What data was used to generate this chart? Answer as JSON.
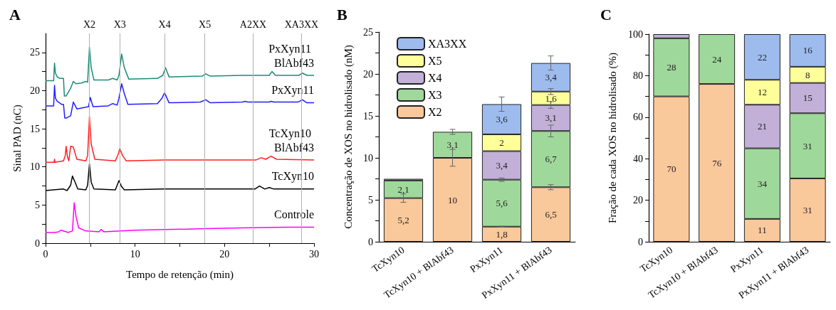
{
  "chart_data": [
    {
      "type": "line",
      "title": "A",
      "xlabel": "Tempo de retenção (min)",
      "ylabel": "Sinal PAD (nC)",
      "xlim": [
        0,
        30
      ],
      "ylim": [
        0,
        27.5
      ],
      "xticks": [
        0,
        {
          "value": 5,
          "label": null
        },
        10,
        {
          "value": 15,
          "label": null
        },
        20,
        {
          "value": 25,
          "label": null
        },
        30
      ],
      "yticks": [
        0,
        {
          "value": 2.5,
          "label": null
        },
        5,
        {
          "value": 7.5,
          "label": null
        },
        10,
        {
          "value": 12.5,
          "label": null
        },
        15,
        {
          "value": 17.5,
          "label": null
        },
        20,
        {
          "value": 22.5,
          "label": null
        },
        25
      ],
      "marker": "none",
      "series": [
        {
          "name": "PxXyn11 BlAbf43",
          "color": "#1a8a7a",
          "x": [
            0,
            0.9,
            1.0,
            1.1,
            1.3,
            1.6,
            2.0,
            2.1,
            2.3,
            2.8,
            3.1,
            3.4,
            4.0,
            4.5,
            4.7,
            4.9,
            5.1,
            5.4,
            7.0,
            7.5,
            8.0,
            8.2,
            8.5,
            8.8,
            9.3,
            12.5,
            13.1,
            13.4,
            13.8,
            17.5,
            17.9,
            18.4,
            22,
            25.0,
            25.3,
            25.7,
            28.3,
            28.7,
            29.2,
            30
          ],
          "values": [
            21.3,
            21.3,
            23.6,
            22.3,
            21.8,
            21.6,
            21.6,
            19.3,
            19.3,
            20.3,
            21.2,
            20.9,
            21.0,
            21.2,
            21.1,
            25.7,
            23.0,
            21.4,
            21.4,
            21.6,
            21.4,
            22.0,
            24.8,
            23.0,
            21.5,
            21.6,
            22.0,
            23.0,
            21.8,
            21.9,
            22.2,
            21.9,
            22.0,
            22.0,
            22.5,
            22.0,
            22.0,
            22.3,
            22.0,
            22.0
          ]
        },
        {
          "name": "PxXyn11",
          "color": "#1f1fff",
          "x": [
            0,
            0.9,
            1.0,
            1.1,
            1.3,
            1.8,
            2.0,
            2.15,
            2.3,
            2.8,
            3.1,
            3.5,
            4.4,
            4.8,
            5.0,
            5.3,
            7.0,
            7.5,
            8.0,
            8.2,
            8.5,
            8.8,
            9.2,
            12.5,
            13.0,
            13.3,
            13.8,
            17.3,
            17.9,
            18.4,
            22.0,
            22.3,
            22.6,
            25.0,
            25.2,
            25.5,
            28.2,
            28.7,
            29.2,
            30
          ],
          "values": [
            18.0,
            18.0,
            20.7,
            19.0,
            18.6,
            18.2,
            18.2,
            16.4,
            16.4,
            16.7,
            18.5,
            17.6,
            17.8,
            17.9,
            19.1,
            17.9,
            18.0,
            18.3,
            18.1,
            19.0,
            20.9,
            19.6,
            18.2,
            18.3,
            19.0,
            19.7,
            18.4,
            18.5,
            18.8,
            18.4,
            18.5,
            18.6,
            18.5,
            18.5,
            18.6,
            18.5,
            18.5,
            18.8,
            18.4,
            18.4
          ]
        },
        {
          "name": "TcXyn10 BlAbf43",
          "color": "#ff2020",
          "x": [
            0,
            0.95,
            1.0,
            1.05,
            2.0,
            2.2,
            2.3,
            2.45,
            2.6,
            2.8,
            3.1,
            3.5,
            4.5,
            4.7,
            4.9,
            5.1,
            5.5,
            7.8,
            8.1,
            8.3,
            8.6,
            9.0,
            13.3,
            23.5,
            24.1,
            24.6,
            25.2,
            25.8,
            30
          ],
          "values": [
            10.6,
            10.6,
            11.0,
            10.6,
            10.8,
            11.5,
            12.7,
            11.3,
            10.8,
            12.7,
            12.6,
            11.0,
            10.8,
            11.5,
            16.6,
            13.0,
            11.0,
            10.8,
            11.6,
            12.4,
            11.5,
            10.8,
            10.9,
            10.9,
            11.2,
            11.0,
            11.4,
            11.0,
            10.9
          ]
        },
        {
          "name": "TcXyn10",
          "color": "#000000",
          "x": [
            0,
            2.0,
            2.4,
            2.8,
            3.0,
            3.3,
            3.6,
            4.5,
            4.7,
            4.9,
            5.1,
            5.4,
            7.8,
            8.2,
            8.5,
            8.8,
            13.2,
            23.4,
            23.9,
            24.5,
            25.0,
            25.5,
            30
          ],
          "values": [
            6.9,
            7.1,
            6.9,
            7.6,
            8.8,
            8.0,
            7.1,
            7.0,
            7.6,
            10.4,
            8.0,
            7.1,
            7.0,
            8.2,
            7.4,
            7.0,
            7.1,
            7.1,
            7.5,
            7.1,
            7.3,
            7.1,
            7.1
          ]
        },
        {
          "name": "Controle",
          "color": "#ff00ff",
          "x": [
            0,
            1.0,
            1.5,
            1.7,
            2.3,
            2.5,
            3.0,
            3.2,
            3.4,
            3.7,
            4.5,
            6.0,
            6.2,
            6.5,
            10,
            18,
            22,
            27,
            30
          ],
          "values": [
            1.4,
            1.4,
            1.5,
            1.7,
            1.5,
            1.4,
            1.6,
            5.3,
            3.5,
            2.0,
            1.6,
            1.5,
            1.8,
            1.5,
            1.7,
            1.9,
            2.0,
            2.1,
            2.1
          ]
        }
      ],
      "ref_lines": [
        {
          "axis": "x",
          "value": 4.9,
          "label": "X2",
          "color": "#b0b0b0"
        },
        {
          "axis": "x",
          "value": 8.3,
          "label": "X3",
          "color": "#b0b0b0"
        },
        {
          "axis": "x",
          "value": 13.3,
          "label": "X4",
          "color": "#b0b0b0"
        },
        {
          "axis": "x",
          "value": 17.8,
          "label": "X5",
          "color": "#b0b0b0"
        },
        {
          "axis": "x",
          "value": 23.2,
          "label": "A2XX",
          "color": "#b0b0b0"
        },
        {
          "axis": "x",
          "value": 28.6,
          "label": "XA3XX",
          "color": "#b0b0b0"
        }
      ]
    },
    {
      "type": "bar",
      "title": "B",
      "ylabel": "Concentração de XOS no hidrolisado (nM)",
      "stacked": true,
      "legend": "top left",
      "categories": [
        "TcXyn10",
        "TcXyn10 + BlAbf43",
        "PxXyn11",
        "PxXyn11 + BlAbf43"
      ],
      "ylim": [
        0,
        25
      ],
      "yticks": [
        0,
        {
          "value": 2.5,
          "label": null
        },
        5,
        {
          "value": 7.5,
          "label": null
        },
        10,
        {
          "value": 12.5,
          "label": null
        },
        15,
        {
          "value": 17.5,
          "label": null
        },
        20,
        {
          "value": 22.5,
          "label": null
        },
        25
      ],
      "series": [
        {
          "name": "X2",
          "color": "#f9c89b",
          "values": [
            5.2,
            10,
            1.8,
            6.5
          ],
          "value_labels": [
            "5,2",
            "10",
            "1,8",
            "6,5"
          ],
          "errors": [
            0.5,
            1.0,
            0.05,
            0.3
          ]
        },
        {
          "name": "X3",
          "color": "#9fd89b",
          "values": [
            2.1,
            3.1,
            5.6,
            6.7
          ],
          "value_labels": [
            "2,1",
            "3,1",
            "5,6",
            "6,7"
          ],
          "errors": [
            null,
            0.3,
            0.2,
            0.7
          ]
        },
        {
          "name": "X4",
          "color": "#c2b0d8",
          "values": [
            0.2,
            null,
            3.4,
            3.1
          ],
          "value_labels": [
            null,
            null,
            "3,4",
            "3,1"
          ],
          "errors": [
            null,
            null,
            null,
            0.4
          ]
        },
        {
          "name": "X5",
          "color": "#ffff99",
          "values": [
            null,
            null,
            2,
            1.6
          ],
          "value_labels": [
            null,
            null,
            "2",
            "1,6"
          ],
          "errors": [
            null,
            null,
            null,
            0.35
          ]
        },
        {
          "name": "XA3XX",
          "color": "#9ebbee",
          "values": [
            null,
            null,
            3.6,
            3.4
          ],
          "value_labels": [
            null,
            null,
            "3,6",
            "3,4"
          ],
          "errors": [
            null,
            null,
            0.85,
            0.85
          ]
        }
      ]
    },
    {
      "type": "bar",
      "title": "C",
      "ylabel": "Fração de cada XOS no hidrolisado (%)",
      "stacked": true,
      "categories": [
        "TcXyn10",
        "TcXyn10 + BlAbf43",
        "PxXyn11",
        "PxXyn11 + BlAbf43"
      ],
      "ylim": [
        0,
        100
      ],
      "yticks": [
        0,
        {
          "value": 10,
          "label": null
        },
        20,
        {
          "value": 30,
          "label": null
        },
        40,
        {
          "value": 50,
          "label": null
        },
        60,
        {
          "value": 70,
          "label": null
        },
        80,
        {
          "value": 90,
          "label": null
        },
        100
      ],
      "series": [
        {
          "color": "#f9c89b",
          "values": [
            70,
            76,
            11,
            30.5
          ],
          "value_labels": [
            "70",
            "76",
            "11",
            "31"
          ]
        },
        {
          "color": "#9fd89b",
          "values": [
            28,
            24,
            34,
            31.4
          ],
          "value_labels": [
            "28",
            "24",
            "34",
            "31"
          ]
        },
        {
          "color": "#c2b0d8",
          "values": [
            2,
            null,
            21,
            14.6
          ],
          "value_labels": [
            null,
            null,
            "21",
            "15"
          ]
        },
        {
          "color": "#ffff99",
          "values": [
            null,
            null,
            12,
            7.8
          ],
          "value_labels": [
            null,
            null,
            "12",
            "8"
          ]
        },
        {
          "color": "#9ebbee",
          "values": [
            null,
            null,
            22,
            15.7
          ],
          "value_labels": [
            null,
            null,
            "22",
            "16"
          ]
        }
      ]
    }
  ]
}
